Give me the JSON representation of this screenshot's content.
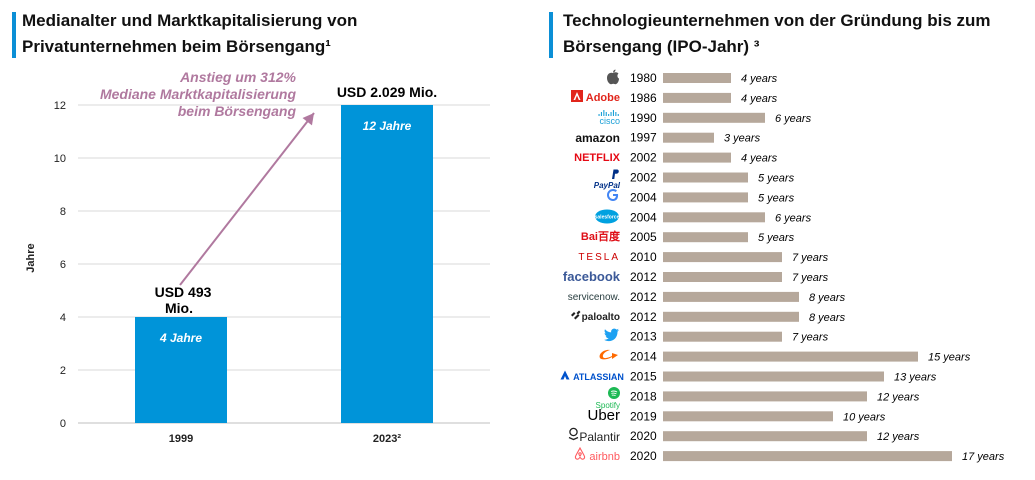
{
  "left_panel": {
    "title_line1": "Medianalter und Marktkapitalisierung von",
    "title_line2": "Privatunternehmen beim Börsengang¹",
    "annotation": [
      "Anstieg um 312%",
      "Mediane Marktkapitalisierung",
      "beim Börsengang"
    ],
    "accent_color": "#0b8fd6",
    "bar_color": "#0094d9",
    "arrow_color": "#b0799f"
  },
  "right_panel": {
    "title_line1": "Technologieunternehmen von der Gründung bis zum",
    "title_line2": "Börsengang (IPO-Jahr) ³",
    "bar_color": "#b6a89b"
  },
  "chart_data": [
    {
      "type": "bar",
      "ylabel": "Jahre",
      "ylim": [
        0,
        12
      ],
      "yticks": [
        0,
        2,
        4,
        6,
        8,
        10,
        12
      ],
      "grid": true,
      "categories": [
        "1999",
        "2023²"
      ],
      "values": [
        4,
        12
      ],
      "bar_labels": [
        "4 Jahre",
        "12 Jahre"
      ],
      "top_labels": [
        "USD 493 Mio.",
        "USD 2.029 Mio."
      ]
    },
    {
      "type": "bar",
      "orientation": "horizontal",
      "companies": [
        {
          "logo": "",
          "icon": "apple-icon",
          "year": "1980",
          "years": 4,
          "label": "4 years",
          "color": "#555555"
        },
        {
          "logo": "Adobe",
          "icon": "adobe-icon",
          "year": "1986",
          "years": 4,
          "label": "4 years",
          "color": "#e1251b"
        },
        {
          "logo": "cisco",
          "icon": "cisco-icon",
          "year": "1990",
          "years": 6,
          "label": "6 years",
          "color": "#1ba0d7"
        },
        {
          "logo": "amazon",
          "icon": "amazon-icon",
          "year": "1997",
          "years": 3,
          "label": "3 years",
          "color": "#111111"
        },
        {
          "logo": "NETFLIX",
          "icon": "netflix-icon",
          "year": "2002",
          "years": 4,
          "label": "4 years",
          "color": "#e50914"
        },
        {
          "logo": "PayPal",
          "icon": "paypal-icon",
          "year": "2002",
          "years": 5,
          "label": "5 years",
          "color": "#003087"
        },
        {
          "logo": "G",
          "icon": "google-icon",
          "year": "2004",
          "years": 5,
          "label": "5 years",
          "color": "#4285f4"
        },
        {
          "logo": "salesforce",
          "icon": "salesforce-icon",
          "year": "2004",
          "years": 6,
          "label": "6 years",
          "color": "#00a1e0"
        },
        {
          "logo": "Bai百度",
          "icon": "baidu-icon",
          "year": "2005",
          "years": 5,
          "label": "5 years",
          "color": "#de0f17"
        },
        {
          "logo": "TESLA",
          "icon": "tesla-icon",
          "year": "2010",
          "years": 7,
          "label": "7 years",
          "color": "#cc0000"
        },
        {
          "logo": "facebook",
          "icon": "facebook-icon",
          "year": "2012",
          "years": 7,
          "label": "7 years",
          "color": "#3b5998"
        },
        {
          "logo": "servicenow.",
          "icon": "servicenow-icon",
          "year": "2012",
          "years": 8,
          "label": "8 years",
          "color": "#293e40"
        },
        {
          "logo": "paloalto",
          "icon": "paloalto-icon",
          "year": "2012",
          "years": 8,
          "label": "8 years",
          "color": "#222222"
        },
        {
          "logo": "",
          "icon": "twitter-icon",
          "year": "2013",
          "years": 7,
          "label": "7 years",
          "color": "#1da1f2"
        },
        {
          "logo": "",
          "icon": "alibaba-icon",
          "year": "2014",
          "years": 15,
          "label": "15 years",
          "color": "#ff6a00"
        },
        {
          "logo": "ATLASSIAN",
          "icon": "atlassian-icon",
          "year": "2015",
          "years": 13,
          "label": "13 years",
          "color": "#0052cc"
        },
        {
          "logo": "Spotify",
          "icon": "spotify-icon",
          "year": "2018",
          "years": 12,
          "label": "12 years",
          "color": "#1db954"
        },
        {
          "logo": "Uber",
          "icon": "uber-icon",
          "year": "2019",
          "years": 10,
          "label": "10 years",
          "color": "#000000"
        },
        {
          "logo": "Palantir",
          "icon": "palantir-icon",
          "year": "2020",
          "years": 12,
          "label": "12 years",
          "color": "#222222"
        },
        {
          "logo": "airbnb",
          "icon": "airbnb-icon",
          "year": "2020",
          "years": 17,
          "label": "17 years",
          "color": "#ff5a5f"
        }
      ]
    }
  ]
}
